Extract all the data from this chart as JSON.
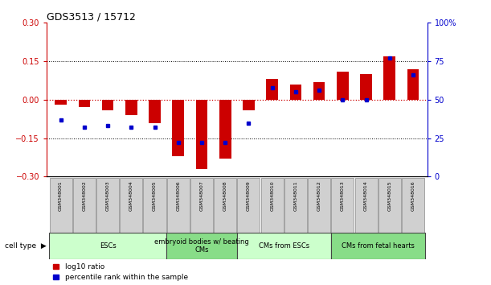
{
  "title": "GDS3513 / 15712",
  "samples": [
    "GSM348001",
    "GSM348002",
    "GSM348003",
    "GSM348004",
    "GSM348005",
    "GSM348006",
    "GSM348007",
    "GSM348008",
    "GSM348009",
    "GSM348010",
    "GSM348011",
    "GSM348012",
    "GSM348013",
    "GSM348014",
    "GSM348015",
    "GSM348016"
  ],
  "log10_ratio": [
    -0.02,
    -0.03,
    -0.04,
    -0.06,
    -0.09,
    -0.22,
    -0.27,
    -0.23,
    -0.04,
    0.08,
    0.06,
    0.07,
    0.11,
    0.1,
    0.17,
    0.12
  ],
  "percentile_rank": [
    37,
    32,
    33,
    32,
    32,
    22,
    22,
    22,
    35,
    58,
    55,
    56,
    50,
    50,
    77,
    66
  ],
  "ylim_left": [
    -0.3,
    0.3
  ],
  "ylim_right": [
    0,
    100
  ],
  "yticks_left": [
    -0.3,
    -0.15,
    0,
    0.15,
    0.3
  ],
  "yticks_right": [
    0,
    25,
    50,
    75,
    100
  ],
  "ytick_labels_right": [
    "0",
    "25",
    "50",
    "75",
    "100%"
  ],
  "bar_color_red": "#cc0000",
  "bar_color_blue": "#0000cc",
  "zero_line_color": "#cc0000",
  "cell_types": [
    {
      "label": "ESCs",
      "start": 0,
      "end": 4,
      "color": "#ccffcc"
    },
    {
      "label": "embryoid bodies w/ beating\nCMs",
      "start": 5,
      "end": 7,
      "color": "#88dd88"
    },
    {
      "label": "CMs from ESCs",
      "start": 8,
      "end": 11,
      "color": "#ccffcc"
    },
    {
      "label": "CMs from fetal hearts",
      "start": 12,
      "end": 15,
      "color": "#88dd88"
    }
  ],
  "bar_width": 0.5,
  "legend_labels": [
    "log10 ratio",
    "percentile rank within the sample"
  ]
}
